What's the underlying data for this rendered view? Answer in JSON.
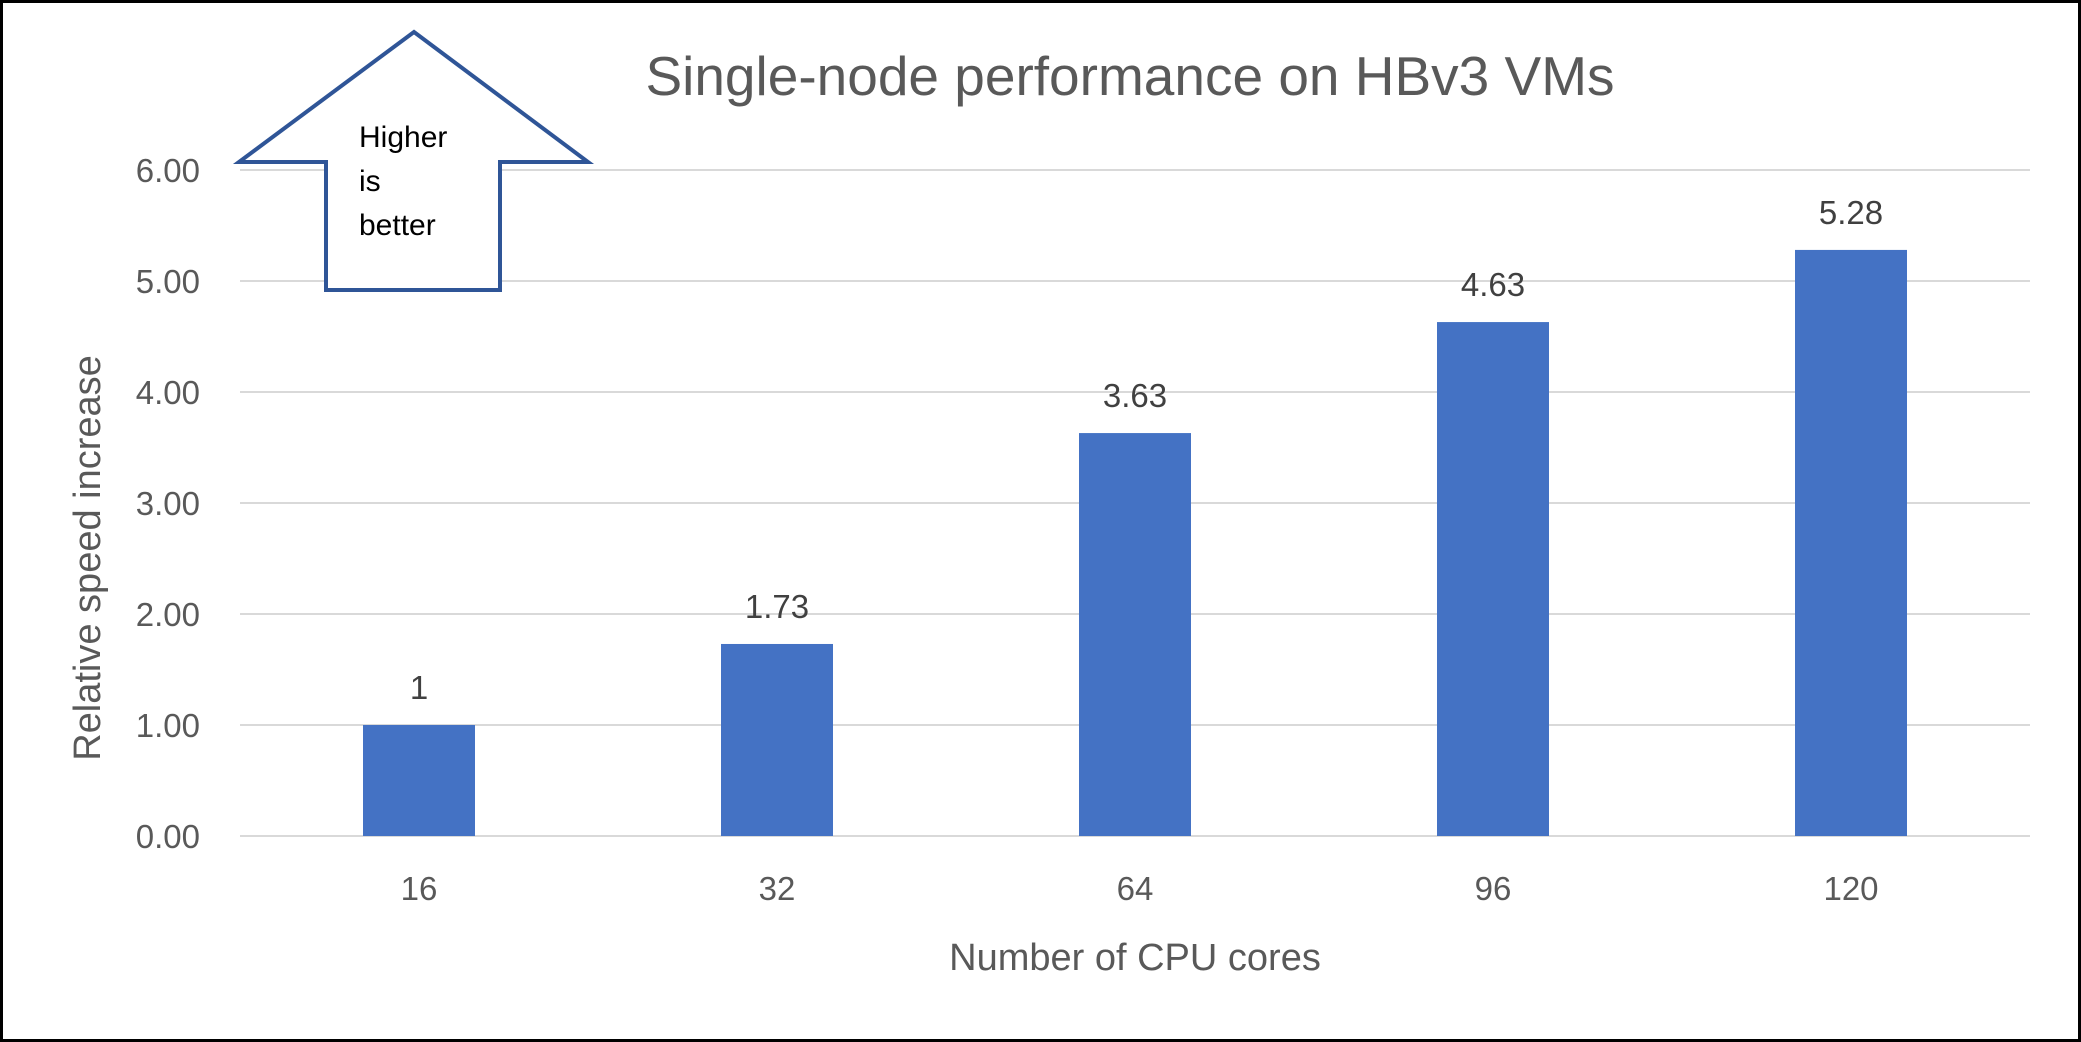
{
  "chart_data": {
    "type": "bar",
    "title": "Single-node performance on HBv3 VMs",
    "xlabel": "Number of CPU cores",
    "ylabel": "Relative speed increase",
    "categories": [
      "16",
      "32",
      "64",
      "96",
      "120"
    ],
    "series": [
      {
        "values": [
          1,
          1.73,
          3.63,
          4.63,
          5.28
        ],
        "data_labels": [
          "1",
          "1.73",
          "3.63",
          "4.63",
          "5.28"
        ]
      }
    ],
    "ylim": [
      0,
      6
    ],
    "yticks": [
      "0.00",
      "1.00",
      "2.00",
      "3.00",
      "4.00",
      "5.00",
      "6.00"
    ],
    "grid": true,
    "legend": "none",
    "bar_color": "#4472C4",
    "gridline_color": "#D9D9D9",
    "annotation": {
      "shape": "up-arrow",
      "lines": [
        "Higher",
        "is",
        "better"
      ],
      "outline_color": "#2F5597"
    }
  }
}
